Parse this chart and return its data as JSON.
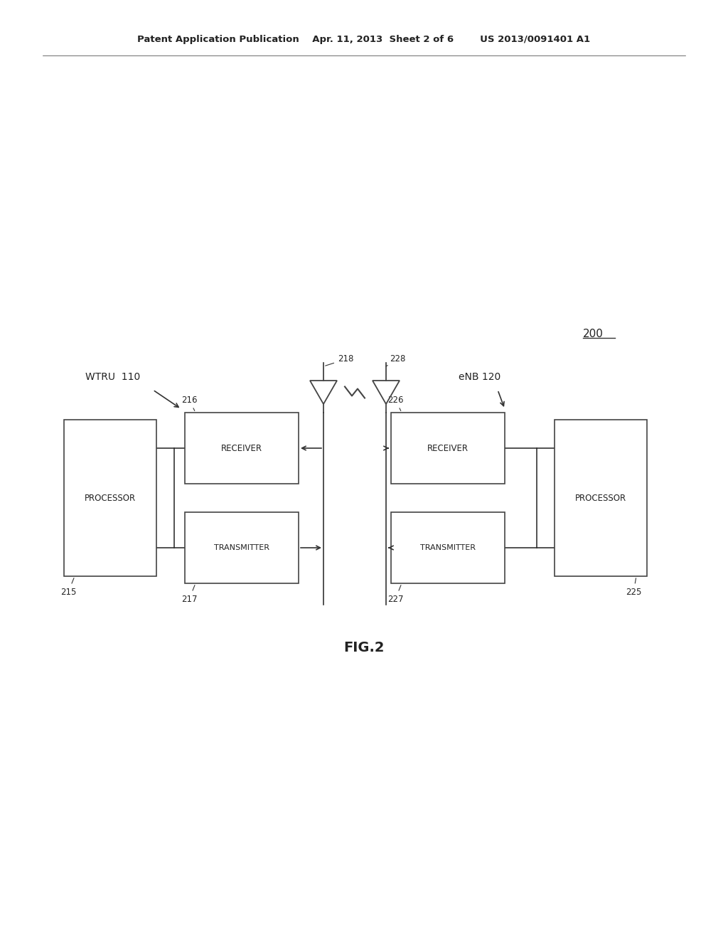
{
  "bg_color": "#ffffff",
  "text_color": "#222222",
  "line_color": "#333333",
  "box_edge": "#444444",
  "box_face": "#ffffff",
  "header": "Patent Application Publication    Apr. 11, 2013  Sheet 2 of 6        US 2013/0091401 A1",
  "label_200": "200",
  "label_wtru": "WTRU  110",
  "label_enb": "eNB 120",
  "label_fig": "FIG.2",
  "wtru_proc_label": "PROCESSOR",
  "wtru_recv_label": "RECEIVER",
  "wtru_xmit_label": "TRANSMITTER",
  "enb_recv_label": "RECEIVER",
  "enb_xmit_label": "TRANSMITTER",
  "enb_proc_label": "PROCESSOR",
  "tag_215": "215",
  "tag_216": "216",
  "tag_217": "217",
  "tag_218": "218",
  "tag_225": "225",
  "tag_226": "226",
  "tag_227": "227",
  "tag_228": "228"
}
